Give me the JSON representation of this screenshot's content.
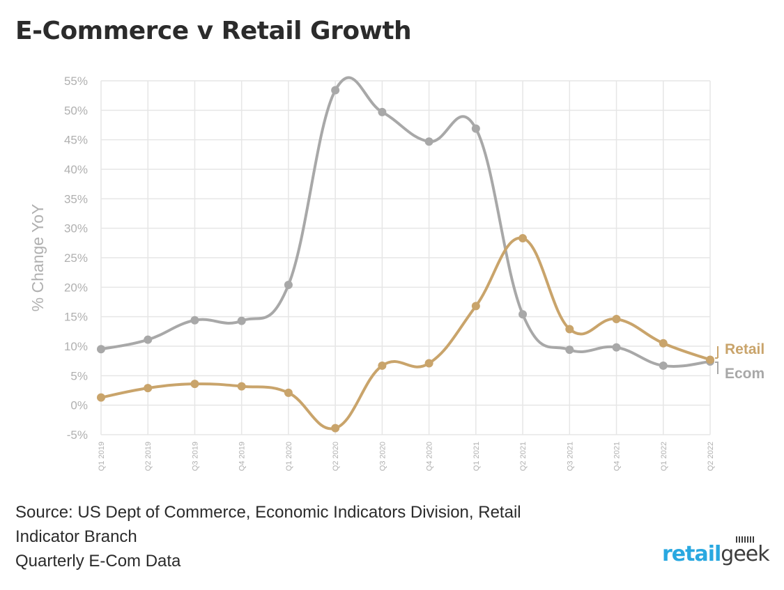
{
  "title": "E-Commerce v Retail Growth",
  "source_lines": [
    "Source: US Dept of Commerce, Economic Indicators Division, Retail",
    "Indicator Branch",
    "Quarterly E-Com Data"
  ],
  "logo": {
    "part1": "retail",
    "part2": "geek"
  },
  "colors": {
    "retail": "#c9a46b",
    "ecom": "#a8a8a8",
    "grid": "#e6e6e6",
    "axis_text": "#b0b0b0"
  },
  "chart_data": {
    "type": "line",
    "title": "E-Commerce v Retail Growth",
    "ylabel": "% Change YoY",
    "xlabel": "",
    "categories": [
      "Q1 2019",
      "Q2 2019",
      "Q3 2019",
      "Q4 2019",
      "Q1 2020",
      "Q2 2020",
      "Q3 2020",
      "Q4 2020",
      "Q1 2021",
      "Q2 2021",
      "Q3 2021",
      "Q4 2021",
      "Q1 2022",
      "Q2 2022"
    ],
    "ylim": [
      -5,
      55
    ],
    "yticks": [
      -5,
      0,
      5,
      10,
      15,
      20,
      25,
      30,
      35,
      40,
      45,
      50,
      55
    ],
    "ytick_labels": [
      "-5%",
      "0%",
      "5%",
      "10%",
      "15%",
      "20%",
      "25%",
      "30%",
      "35%",
      "40%",
      "45%",
      "50%",
      "55%"
    ],
    "grid": true,
    "legend": "direct-labels-right",
    "series": [
      {
        "name": "Ecom",
        "color": "#a8a8a8",
        "values": [
          9.5,
          11.1,
          14.4,
          14.3,
          20.4,
          53.4,
          49.7,
          44.7,
          46.9,
          15.4,
          9.4,
          9.8,
          6.7,
          7.4
        ]
      },
      {
        "name": "Retail",
        "color": "#c9a46b",
        "values": [
          1.3,
          2.9,
          3.6,
          3.2,
          2.1,
          -3.9,
          6.7,
          7.1,
          16.8,
          28.3,
          12.9,
          14.6,
          10.5,
          7.7
        ]
      }
    ]
  }
}
